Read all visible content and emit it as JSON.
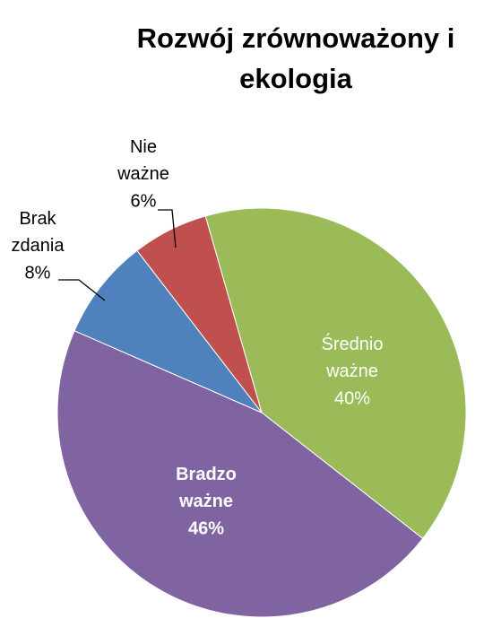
{
  "chart_data": {
    "type": "pie",
    "title": "Rozwój zrównoważony i ekologia",
    "categories": [
      "Średnio ważne",
      "Bradzo ważne",
      "Brak zdania",
      "Nie ważne"
    ],
    "values": [
      40,
      46,
      8,
      6
    ],
    "value_labels": [
      "40%",
      "46%",
      "8%",
      "6%"
    ],
    "colors": [
      "#9bbb59",
      "#8064a2",
      "#4f81bd",
      "#c0504d"
    ]
  }
}
